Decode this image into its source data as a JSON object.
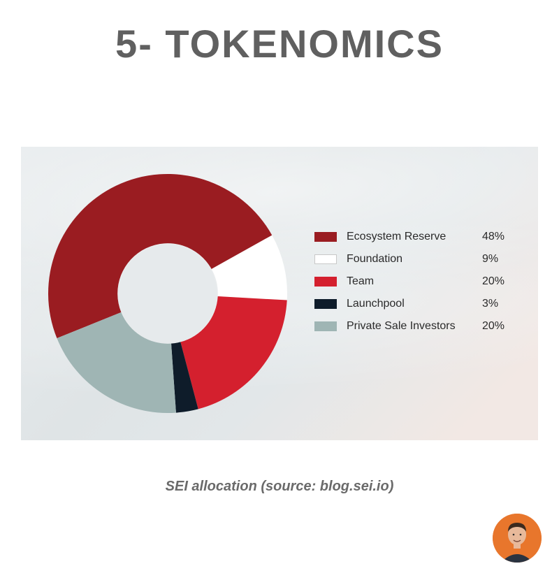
{
  "title": "5- TOKENOMICS",
  "caption": "SEI allocation (source: blog.sei.io)",
  "avatar": {
    "bg_color": "#e8762c",
    "skin_color": "#e8b99a",
    "hair_color": "#3b2a1e",
    "shirt_color": "#2a3340"
  },
  "chart": {
    "type": "donut",
    "inner_radius_ratio": 0.42,
    "start_angle_deg": 158,
    "direction": "clockwise",
    "background_gradient": [
      "#e8ecee",
      "#dfe4e6",
      "#e2e7e9",
      "#f2e8e4"
    ],
    "hole_color": "#e6eaec",
    "slices": [
      {
        "label": "Ecosystem Reserve",
        "value": 48,
        "display": "48%",
        "color": "#9a1c21"
      },
      {
        "label": "Foundation",
        "value": 9,
        "display": "9%",
        "color": "#ffffff"
      },
      {
        "label": "Team",
        "value": 20,
        "display": "20%",
        "color": "#d4202e"
      },
      {
        "label": "Launchpool",
        "value": 3,
        "display": "3%",
        "color": "#0e1c2a"
      },
      {
        "label": "Private Sale Investors",
        "value": 20,
        "display": "20%",
        "color": "#9fb5b4"
      }
    ],
    "legend": {
      "swatch_width": 32,
      "swatch_height": 14,
      "font_size": 16,
      "text_color": "#2a2a2a"
    }
  }
}
